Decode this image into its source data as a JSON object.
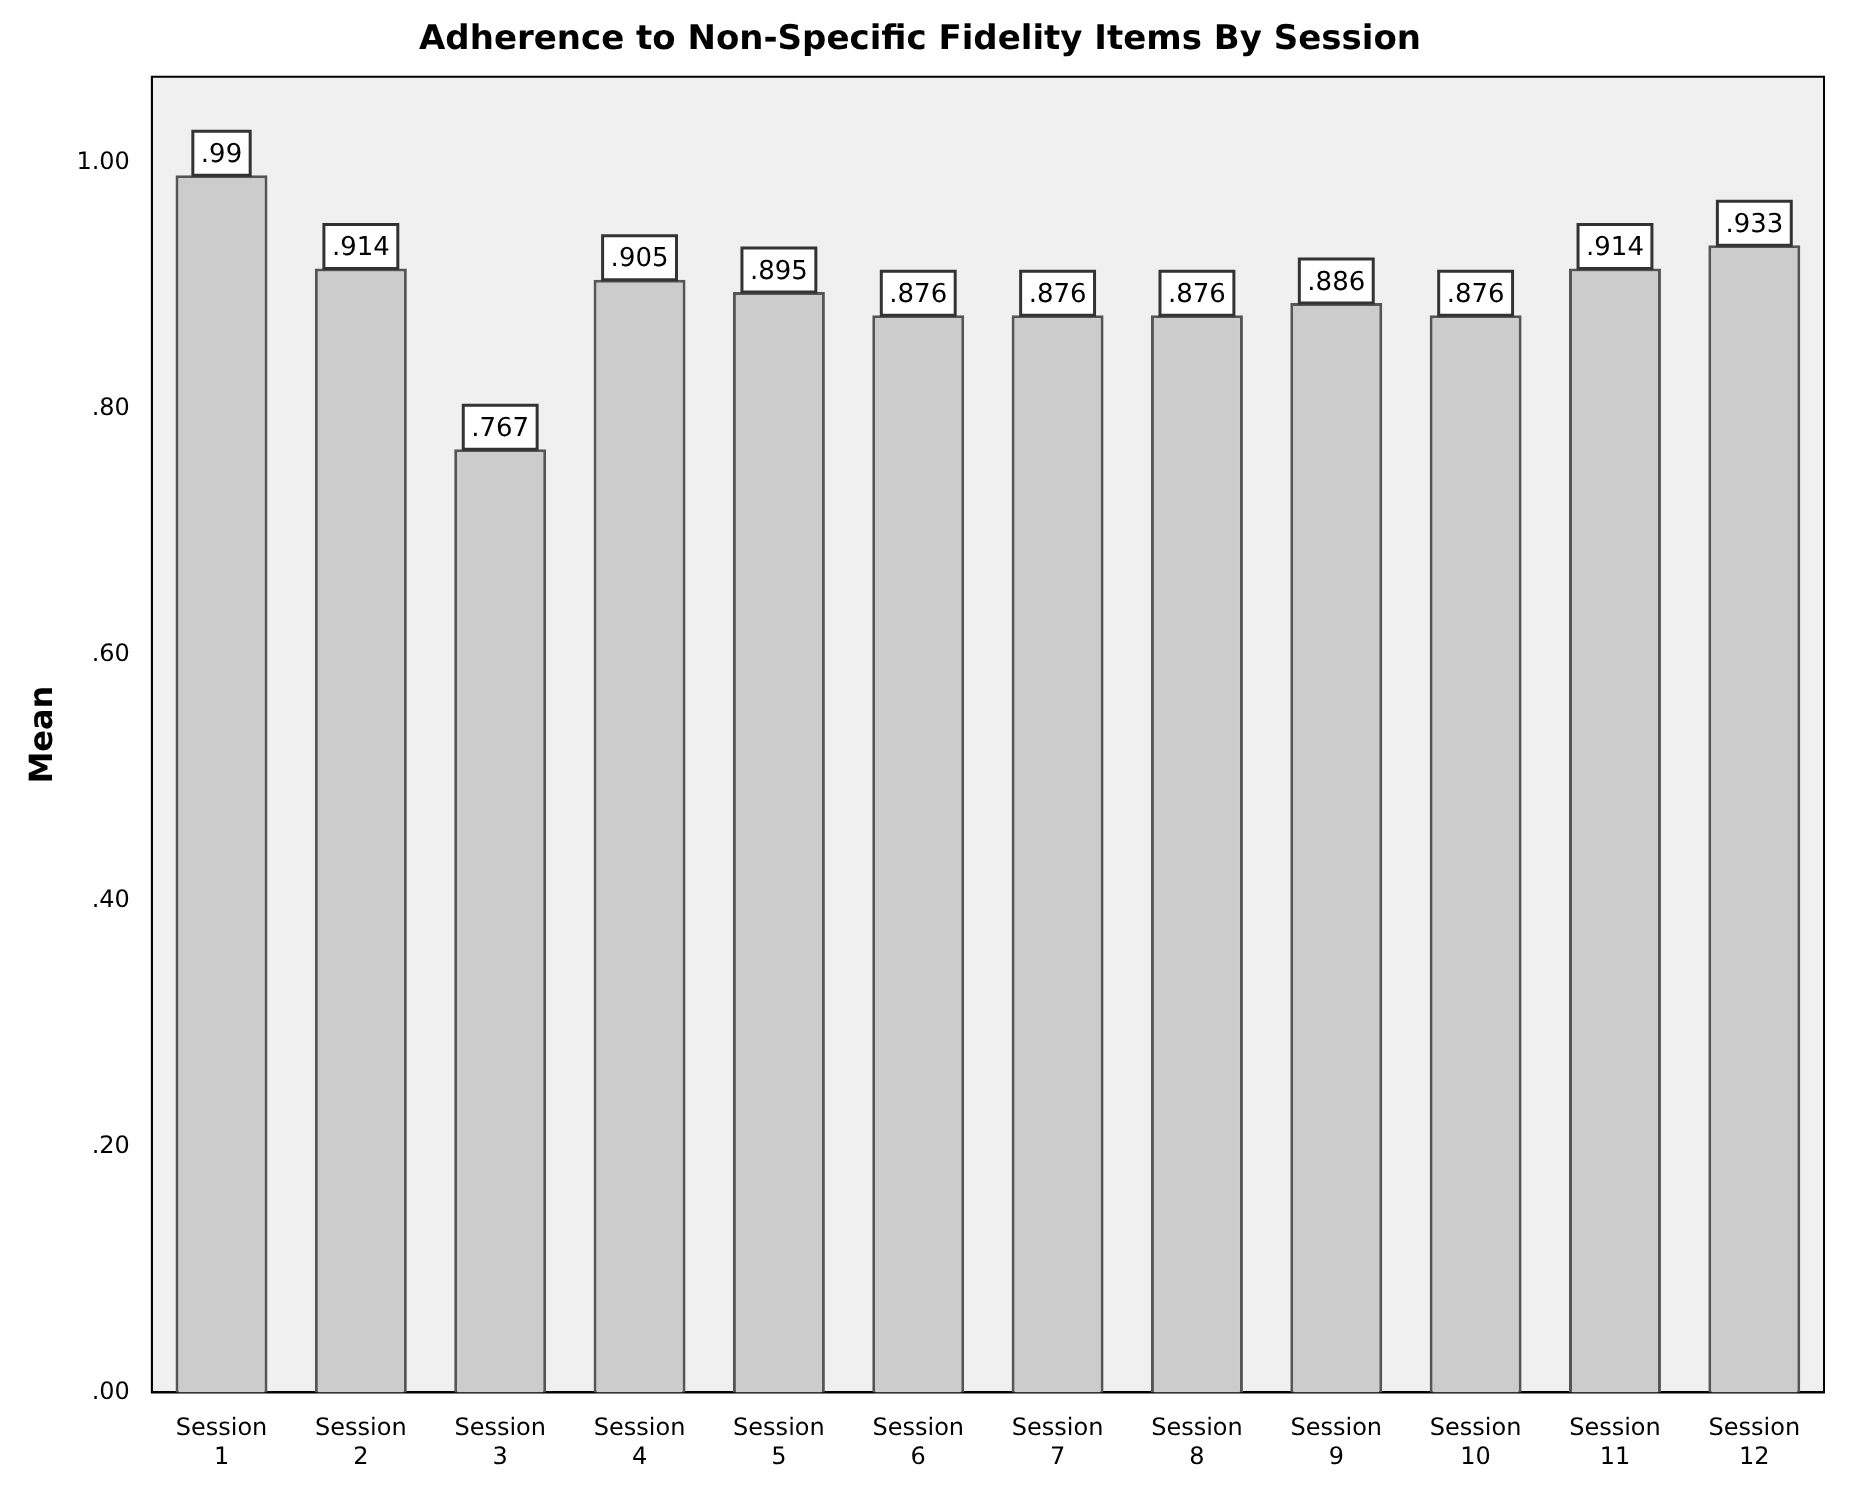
{
  "chart_data": {
    "type": "bar",
    "title": "Adherence to Non-Specific Fidelity Items By Session",
    "ylabel": "Mean",
    "categories": [
      "Session 1",
      "Session 2",
      "Session 3",
      "Session 4",
      "Session 5",
      "Session 6",
      "Session 7",
      "Session 8",
      "Session 9",
      "Session 10",
      "Session 11",
      "Session 12"
    ],
    "values": [
      0.99,
      0.914,
      0.767,
      0.905,
      0.895,
      0.876,
      0.876,
      0.876,
      0.886,
      0.876,
      0.914,
      0.933
    ],
    "value_labels": [
      ".99",
      ".914",
      ".767",
      ".905",
      ".895",
      ".876",
      ".876",
      ".876",
      ".886",
      ".876",
      ".914",
      ".933"
    ],
    "color": "#cccccc",
    "ylim": [
      0,
      1.07
    ],
    "yticks": [
      {
        "value": 0,
        "label": ".00"
      },
      {
        "value": 0.2,
        "label": ".20"
      },
      {
        "value": 0.4,
        "label": ".40"
      },
      {
        "value": 0.6,
        "label": ".60"
      },
      {
        "value": 0.8,
        "label": ".80"
      },
      {
        "value": 1,
        "label": "1.00"
      }
    ],
    "grid": false,
    "legend": false
  }
}
